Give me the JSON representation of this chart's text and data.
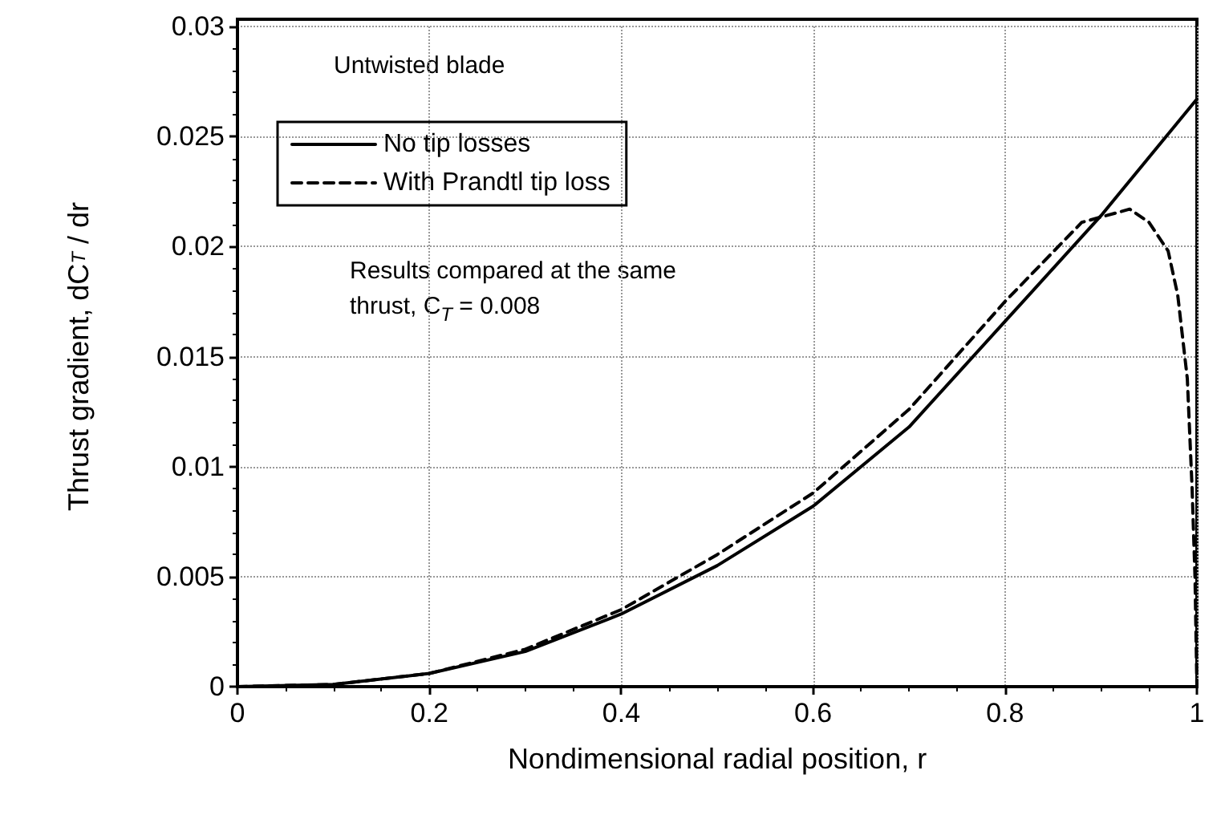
{
  "chart_data": {
    "type": "line",
    "xlabel": "Nondimensional radial position, r",
    "ylabel": "Thrust gradient, dC$_{T}$ / dr",
    "annotations": [
      "Untwisted blade",
      "Results compared at the same\nthrust, C$_{T}$ = 0.008"
    ],
    "series": [
      {
        "name": "No tip losses",
        "color": "#000000",
        "line_style": "solid",
        "x": [
          0,
          0.1,
          0.2,
          0.3,
          0.4,
          0.5,
          0.6,
          0.7,
          0.8,
          0.9,
          1.0
        ],
        "values": [
          0,
          0.0001,
          0.0006,
          0.0016,
          0.0033,
          0.0055,
          0.0082,
          0.0118,
          0.0166,
          0.0214,
          0.0267
        ]
      },
      {
        "name": "With Prandtl tip loss",
        "color": "#000000",
        "line_style": "dashed",
        "x": [
          0,
          0.1,
          0.2,
          0.3,
          0.4,
          0.5,
          0.6,
          0.7,
          0.8,
          0.88,
          0.93,
          0.95,
          0.97,
          0.98,
          0.99,
          0.995,
          0.998,
          1.0
        ],
        "values": [
          0,
          0.0001,
          0.0006,
          0.0017,
          0.0035,
          0.006,
          0.0088,
          0.0126,
          0.0175,
          0.0211,
          0.0217,
          0.0211,
          0.0198,
          0.0178,
          0.014,
          0.009,
          0.005,
          0
        ]
      }
    ],
    "xlim": [
      0,
      1
    ],
    "xticks": [
      0,
      0.2,
      0.4,
      0.6,
      0.8,
      1
    ],
    "ylim": [
      0,
      0.03
    ],
    "yticks": [
      0,
      0.005,
      0.01,
      0.015,
      0.02,
      0.025,
      0.03
    ],
    "grid": true,
    "legend": "top left",
    "marker": "none"
  }
}
